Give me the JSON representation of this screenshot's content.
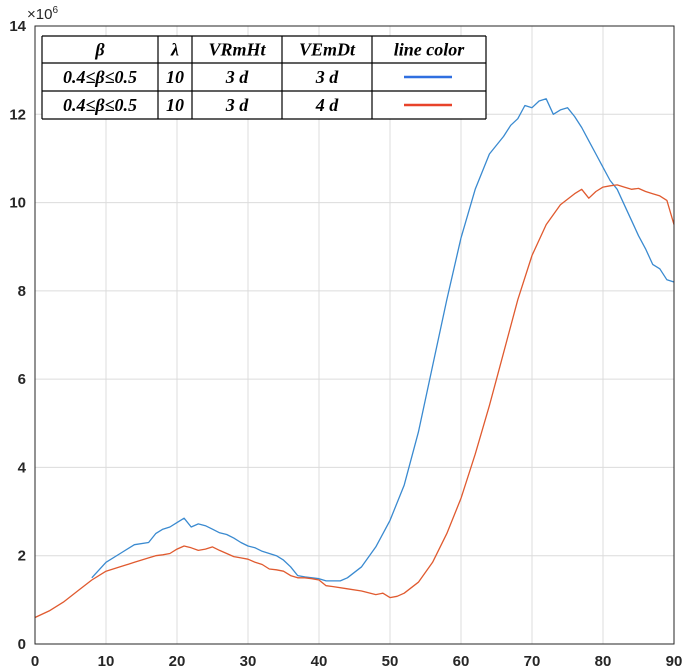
{
  "chart_data": {
    "type": "line",
    "title": "",
    "xlabel": "",
    "ylabel": "",
    "xlim": [
      0,
      90
    ],
    "ylim": [
      0,
      14
    ],
    "y_exponent_base": "×10",
    "y_exponent_power": "6",
    "xticks": [
      "0",
      "10",
      "20",
      "30",
      "40",
      "50",
      "60",
      "70",
      "80",
      "90"
    ],
    "yticks": [
      "0",
      "2",
      "4",
      "6",
      "8",
      "10",
      "12",
      "14"
    ],
    "grid": true,
    "legend_placement": "top-left",
    "legend_table": {
      "headers": [
        "β",
        "λ",
        "VRmHt",
        "VEmDt",
        "line color"
      ],
      "rows": [
        [
          "0.4≤β≤0.5",
          "10",
          "3 d",
          "3 d"
        ],
        [
          "0.4≤β≤0.5",
          "10",
          "3 d",
          "4 d"
        ]
      ],
      "swatch_colors": [
        "#2f6fe0",
        "#e8432a"
      ]
    },
    "series": [
      {
        "color": "#3a8ad0",
        "x": [
          8,
          10,
          12,
          14,
          16,
          17,
          18,
          19,
          20,
          21,
          22,
          23,
          24,
          25,
          26,
          27,
          28,
          29,
          30,
          31,
          32,
          33,
          34,
          35,
          36,
          37,
          38,
          40,
          41,
          42,
          43,
          44,
          46,
          48,
          50,
          52,
          54,
          56,
          58,
          60,
          62,
          64,
          66,
          67,
          68,
          69,
          70,
          71,
          72,
          73,
          74,
          75,
          76,
          77,
          78,
          79,
          80,
          81,
          82,
          83,
          84,
          85,
          86,
          87,
          88,
          89,
          90
        ],
        "y": [
          1.5,
          1.85,
          2.05,
          2.25,
          2.3,
          2.5,
          2.6,
          2.65,
          2.75,
          2.85,
          2.65,
          2.72,
          2.68,
          2.6,
          2.52,
          2.48,
          2.4,
          2.3,
          2.22,
          2.18,
          2.1,
          2.05,
          2.0,
          1.9,
          1.75,
          1.55,
          1.52,
          1.48,
          1.43,
          1.43,
          1.43,
          1.5,
          1.75,
          2.2,
          2.8,
          3.6,
          4.8,
          6.3,
          7.8,
          9.2,
          10.3,
          11.1,
          11.5,
          11.75,
          11.9,
          12.2,
          12.15,
          12.3,
          12.35,
          12.0,
          12.1,
          12.15,
          11.95,
          11.7,
          11.4,
          11.1,
          10.8,
          10.5,
          10.3,
          9.95,
          9.6,
          9.25,
          8.95,
          8.6,
          8.5,
          8.25,
          8.2
        ]
      },
      {
        "color": "#e05a2f",
        "x": [
          0,
          2,
          4,
          6,
          8,
          10,
          12,
          14,
          16,
          17,
          18,
          19,
          20,
          21,
          22,
          23,
          24,
          25,
          26,
          27,
          28,
          29,
          30,
          31,
          32,
          33,
          34,
          35,
          36,
          37,
          38,
          39,
          40,
          41,
          42,
          44,
          46,
          48,
          49,
          50,
          51,
          52,
          54,
          56,
          58,
          60,
          62,
          64,
          66,
          68,
          70,
          72,
          74,
          76,
          77,
          78,
          79,
          80,
          81,
          82,
          83,
          84,
          85,
          86,
          87,
          88,
          89,
          90
        ],
        "y": [
          0.6,
          0.75,
          0.95,
          1.2,
          1.45,
          1.65,
          1.75,
          1.85,
          1.95,
          2.0,
          2.02,
          2.05,
          2.15,
          2.22,
          2.18,
          2.12,
          2.15,
          2.2,
          2.12,
          2.05,
          1.98,
          1.95,
          1.92,
          1.85,
          1.8,
          1.7,
          1.68,
          1.65,
          1.55,
          1.5,
          1.5,
          1.48,
          1.45,
          1.32,
          1.3,
          1.25,
          1.2,
          1.12,
          1.15,
          1.05,
          1.08,
          1.15,
          1.4,
          1.85,
          2.5,
          3.3,
          4.3,
          5.4,
          6.6,
          7.8,
          8.8,
          9.5,
          9.95,
          10.2,
          10.3,
          10.1,
          10.25,
          10.35,
          10.38,
          10.4,
          10.35,
          10.3,
          10.32,
          10.25,
          10.2,
          10.15,
          10.05,
          9.5
        ]
      }
    ]
  }
}
